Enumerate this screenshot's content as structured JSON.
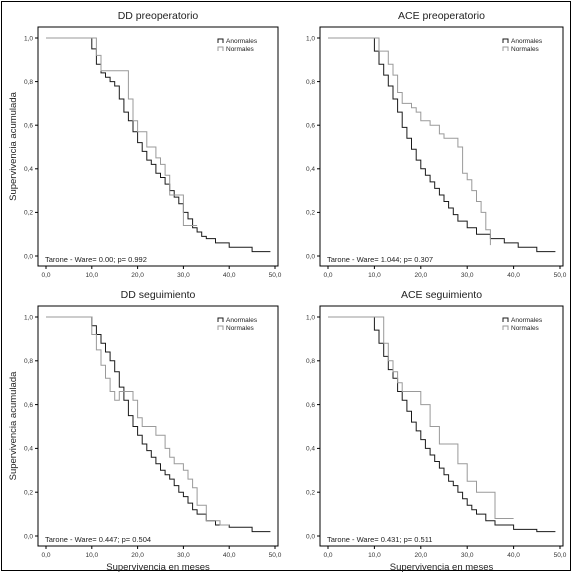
{
  "figure": {
    "y_label": "Supervivencia acumulada",
    "x_label": "Supervivencia en meses"
  },
  "chart_data": [
    {
      "type": "line",
      "title": "DD preoperatorio",
      "ylabel": "Supervivencia acumulada",
      "xlabel": "",
      "xlim": [
        0,
        50
      ],
      "ylim": [
        0,
        1
      ],
      "xticks": [
        "0,0",
        "10,0",
        "20,0",
        "30,0",
        "40,0",
        "50,0"
      ],
      "yticks": [
        "0,0",
        "0,2",
        "0,4",
        "0,6",
        "0,8",
        "1,0"
      ],
      "legend_position": "top-right",
      "annotation": "Tarone - Ware= 0.00; p= 0.992",
      "series": [
        {
          "name": "Anormales",
          "color": "#1a1a1a",
          "x": [
            0,
            9.5,
            10,
            11,
            12,
            13,
            14,
            15,
            16,
            17,
            18,
            19,
            20,
            21,
            22,
            23,
            24,
            25,
            26,
            27,
            28,
            29,
            30,
            31,
            32,
            33,
            34,
            35,
            37,
            40,
            45,
            49
          ],
          "y": [
            1,
            1,
            0.95,
            0.88,
            0.84,
            0.82,
            0.8,
            0.78,
            0.72,
            0.66,
            0.62,
            0.57,
            0.52,
            0.48,
            0.44,
            0.42,
            0.38,
            0.36,
            0.33,
            0.3,
            0.27,
            0.24,
            0.2,
            0.17,
            0.13,
            0.11,
            0.09,
            0.08,
            0.06,
            0.04,
            0.02,
            0.02
          ]
        },
        {
          "name": "Normales",
          "color": "#9a9a9a",
          "x": [
            0,
            9.5,
            11,
            12,
            13,
            17,
            18,
            19,
            20,
            22,
            24,
            25,
            26,
            27,
            29,
            30,
            32,
            33
          ],
          "y": [
            1,
            1,
            0.92,
            0.85,
            0.85,
            0.85,
            0.72,
            0.62,
            0.57,
            0.5,
            0.45,
            0.42,
            0.37,
            0.28,
            0.28,
            0.14,
            0.14,
            0.14
          ]
        }
      ]
    },
    {
      "type": "line",
      "title": "ACE preoperatorio",
      "ylabel": "",
      "xlabel": "",
      "xlim": [
        0,
        50
      ],
      "ylim": [
        0,
        1
      ],
      "xticks": [
        "0,0",
        "10,0",
        "20,0",
        "30,0",
        "40,0",
        "50,0"
      ],
      "yticks": [
        "0,0",
        "0,2",
        "0,4",
        "0,6",
        "0,8",
        "1,0"
      ],
      "legend_position": "top-right",
      "annotation": "Tarone - Ware= 1.044; p= 0.307",
      "series": [
        {
          "name": "Anormales",
          "color": "#1a1a1a",
          "x": [
            0,
            9.5,
            10,
            11,
            12,
            13,
            14,
            15,
            16,
            17,
            18,
            19,
            20,
            21,
            22,
            23,
            24,
            25,
            26,
            27,
            28,
            30,
            32,
            35,
            38,
            41,
            45,
            49
          ],
          "y": [
            1,
            1,
            0.94,
            0.88,
            0.83,
            0.78,
            0.72,
            0.66,
            0.59,
            0.54,
            0.49,
            0.44,
            0.4,
            0.37,
            0.34,
            0.31,
            0.28,
            0.25,
            0.22,
            0.19,
            0.16,
            0.13,
            0.1,
            0.08,
            0.06,
            0.04,
            0.02,
            0.02
          ]
        },
        {
          "name": "Normales",
          "color": "#9a9a9a",
          "x": [
            0,
            9.5,
            11,
            13,
            14,
            15,
            16,
            17,
            18,
            19,
            20,
            22,
            24,
            25,
            26,
            28,
            29,
            30,
            31,
            32,
            33,
            34,
            35
          ],
          "y": [
            1,
            1,
            0.94,
            0.88,
            0.83,
            0.75,
            0.7,
            0.7,
            0.68,
            0.66,
            0.62,
            0.6,
            0.56,
            0.54,
            0.54,
            0.5,
            0.38,
            0.35,
            0.3,
            0.25,
            0.2,
            0.12,
            0.05
          ]
        }
      ]
    },
    {
      "type": "line",
      "title": "DD seguimiento",
      "ylabel": "Supervivencia acumulada",
      "xlabel": "Supervivencia en meses",
      "xlim": [
        0,
        50
      ],
      "ylim": [
        0,
        1
      ],
      "xticks": [
        "0,0",
        "10,0",
        "20,0",
        "30,0",
        "40,0",
        "50,0"
      ],
      "yticks": [
        "0,0",
        "0,2",
        "0,4",
        "0,6",
        "0,8",
        "1,0"
      ],
      "legend_position": "top-right",
      "annotation": "Tarone - Ware= 0.447; p= 0.504",
      "series": [
        {
          "name": "Anormales",
          "color": "#1a1a1a",
          "x": [
            0,
            9.5,
            10,
            11,
            12,
            13,
            14,
            15,
            16,
            17,
            18,
            19,
            20,
            21,
            22,
            23,
            24,
            25,
            26,
            27,
            28,
            29,
            30,
            31,
            32,
            33,
            35,
            37,
            40,
            45,
            49
          ],
          "y": [
            1,
            1,
            0.96,
            0.92,
            0.88,
            0.84,
            0.8,
            0.75,
            0.68,
            0.62,
            0.55,
            0.5,
            0.46,
            0.42,
            0.39,
            0.36,
            0.33,
            0.3,
            0.28,
            0.26,
            0.23,
            0.2,
            0.18,
            0.15,
            0.12,
            0.1,
            0.07,
            0.05,
            0.04,
            0.02,
            0.02
          ]
        },
        {
          "name": "Normales",
          "color": "#9a9a9a",
          "x": [
            0,
            9.5,
            10,
            11,
            12,
            13,
            14,
            15,
            16,
            18,
            19,
            20,
            21,
            22,
            24,
            25,
            26,
            27,
            28,
            30,
            31,
            32,
            33,
            35,
            38,
            40
          ],
          "y": [
            1,
            1,
            0.92,
            0.85,
            0.78,
            0.72,
            0.66,
            0.62,
            0.66,
            0.66,
            0.62,
            0.54,
            0.5,
            0.5,
            0.46,
            0.46,
            0.4,
            0.36,
            0.33,
            0.3,
            0.26,
            0.22,
            0.14,
            0.07,
            0.05,
            0.05
          ]
        }
      ]
    },
    {
      "type": "line",
      "title": "ACE seguimiento",
      "ylabel": "",
      "xlabel": "Supervivencia en meses",
      "xlim": [
        0,
        50
      ],
      "ylim": [
        0,
        1
      ],
      "xticks": [
        "0,0",
        "10,0",
        "20,0",
        "30,0",
        "40,0",
        "50,0"
      ],
      "yticks": [
        "0,0",
        "0,2",
        "0,4",
        "0,6",
        "0,8",
        "1,0"
      ],
      "legend_position": "top-right",
      "annotation": "Tarone - Ware= 0.431; p= 0.511",
      "series": [
        {
          "name": "Anormales",
          "color": "#1a1a1a",
          "x": [
            0,
            9.5,
            10,
            11,
            12,
            13,
            14,
            15,
            16,
            17,
            18,
            19,
            20,
            21,
            22,
            23,
            24,
            25,
            26,
            27,
            28,
            29,
            30,
            31,
            32,
            34,
            36,
            40,
            45,
            49
          ],
          "y": [
            1,
            1,
            0.94,
            0.88,
            0.82,
            0.76,
            0.72,
            0.66,
            0.62,
            0.57,
            0.52,
            0.48,
            0.44,
            0.4,
            0.37,
            0.34,
            0.31,
            0.28,
            0.25,
            0.23,
            0.2,
            0.17,
            0.14,
            0.12,
            0.1,
            0.07,
            0.05,
            0.03,
            0.02,
            0.02
          ]
        },
        {
          "name": "Normales",
          "color": "#9a9a9a",
          "x": [
            0,
            11,
            12,
            13,
            14,
            15,
            16,
            17,
            18,
            19,
            20,
            22,
            24,
            26,
            28,
            30,
            32,
            36,
            38,
            40
          ],
          "y": [
            1,
            1,
            0.88,
            0.8,
            0.75,
            0.7,
            0.66,
            0.66,
            0.66,
            0.66,
            0.6,
            0.5,
            0.42,
            0.42,
            0.33,
            0.25,
            0.2,
            0.08,
            0.08,
            0.08
          ]
        }
      ]
    }
  ]
}
